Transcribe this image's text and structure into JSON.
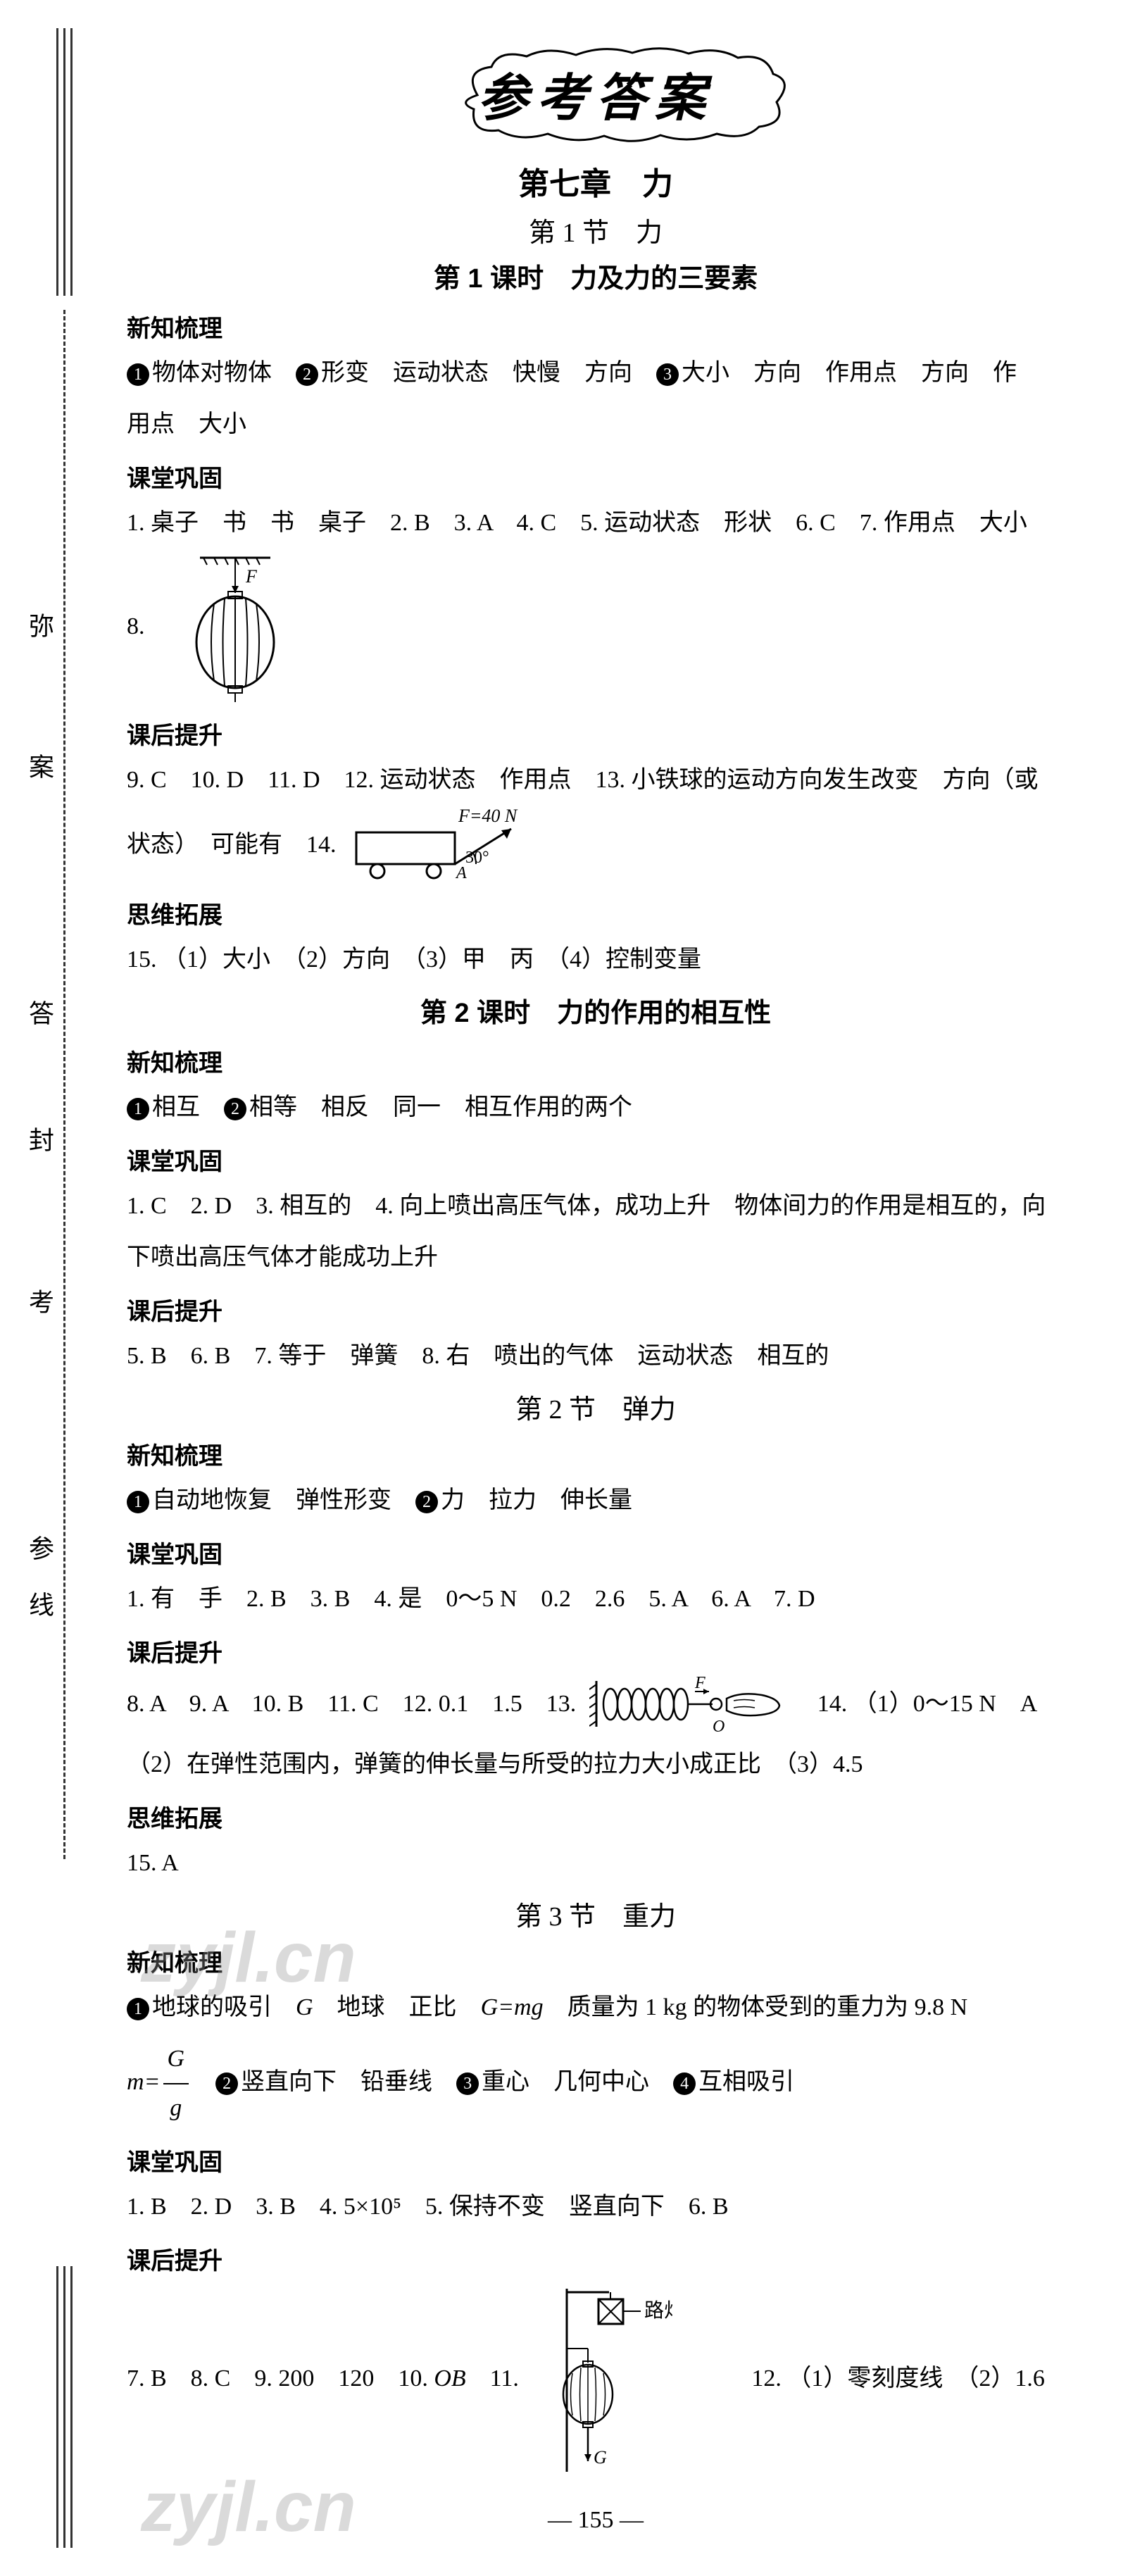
{
  "page": {
    "title": "参考答案",
    "chapter": "第七章　力",
    "page_number": "155",
    "spine_chars": [
      "弥",
      "案",
      "答",
      "封",
      "考",
      "参",
      "线"
    ]
  },
  "watermark": "zyjl.cn",
  "sections": [
    {
      "section_title": "第 1 节　力",
      "lessons": [
        {
          "lesson_title": "第 1 课时　力及力的三要素",
          "blocks": [
            {
              "heading": "新知梳理",
              "lines": [
                [
                  {
                    "type": "num",
                    "v": "1"
                  },
                  {
                    "type": "text",
                    "v": "物体对物体　"
                  },
                  {
                    "type": "num",
                    "v": "2"
                  },
                  {
                    "type": "text",
                    "v": "形变　运动状态　快慢　方向　"
                  },
                  {
                    "type": "num",
                    "v": "3"
                  },
                  {
                    "type": "text",
                    "v": "大小　方向　作用点　方向　作"
                  }
                ],
                [
                  {
                    "type": "text",
                    "v": "用点　大小"
                  }
                ]
              ]
            },
            {
              "heading": "课堂巩固",
              "lines": [
                [
                  {
                    "type": "text",
                    "v": "1. 桌子　书　书　桌子　2. B　3. A　4. C　5. 运动状态　形状　6. C　7. 作用点　大小"
                  }
                ],
                [
                  {
                    "type": "text",
                    "v": "8. "
                  },
                  {
                    "type": "svg",
                    "name": "lantern-figure",
                    "svg": "lantern"
                  }
                ]
              ]
            },
            {
              "heading": "课后提升",
              "lines": [
                [
                  {
                    "type": "text",
                    "v": "9. C　10. D　11. D　12. 运动状态　作用点　13. 小铁球的运动方向发生改变　方向（或"
                  }
                ],
                [
                  {
                    "type": "text",
                    "v": "状态）　可能有　14. "
                  },
                  {
                    "type": "svg",
                    "name": "cart-force-figure",
                    "svg": "cart"
                  }
                ]
              ]
            },
            {
              "heading": "思维拓展",
              "lines": [
                [
                  {
                    "type": "text",
                    "v": "15. （1）大小　（2）方向　（3）甲　丙　（4）控制变量"
                  }
                ]
              ]
            }
          ]
        },
        {
          "lesson_title": "第 2 课时　力的作用的相互性",
          "blocks": [
            {
              "heading": "新知梳理",
              "lines": [
                [
                  {
                    "type": "num",
                    "v": "1"
                  },
                  {
                    "type": "text",
                    "v": "相互　"
                  },
                  {
                    "type": "num",
                    "v": "2"
                  },
                  {
                    "type": "text",
                    "v": "相等　相反　同一　相互作用的两个"
                  }
                ]
              ]
            },
            {
              "heading": "课堂巩固",
              "lines": [
                [
                  {
                    "type": "text",
                    "v": "1. C　2. D　3. 相互的　4. 向上喷出高压气体，成功上升　物体间力的作用是相互的，向"
                  }
                ],
                [
                  {
                    "type": "text",
                    "v": "下喷出高压气体才能成功上升"
                  }
                ]
              ]
            },
            {
              "heading": "课后提升",
              "lines": [
                [
                  {
                    "type": "text",
                    "v": "5. B　6. B　7. 等于　弹簧　8. 右　喷出的气体　运动状态　相互的"
                  }
                ]
              ]
            }
          ]
        }
      ]
    },
    {
      "section_title": "第 2 节　弹力",
      "lessons": [
        {
          "lesson_title": "",
          "blocks": [
            {
              "heading": "新知梳理",
              "lines": [
                [
                  {
                    "type": "num",
                    "v": "1"
                  },
                  {
                    "type": "text",
                    "v": "自动地恢复　弹性形变　"
                  },
                  {
                    "type": "num",
                    "v": "2"
                  },
                  {
                    "type": "text",
                    "v": "力　拉力　伸长量"
                  }
                ]
              ]
            },
            {
              "heading": "课堂巩固",
              "lines": [
                [
                  {
                    "type": "text",
                    "v": "1. 有　手　2. B　3. B　4. 是　0～5 N　0.2　2.6　5. A　6. A　7. D"
                  }
                ]
              ]
            },
            {
              "heading": "课后提升",
              "lines": [
                [
                  {
                    "type": "text",
                    "v": "8. A　9. A　10. B　11. C　12. 0.1　1.5　13. "
                  },
                  {
                    "type": "svg",
                    "name": "spring-hand-figure",
                    "svg": "spring"
                  },
                  {
                    "type": "text",
                    "v": "　14. （1）0～15 N　A"
                  }
                ],
                [
                  {
                    "type": "text",
                    "v": "（2）在弹性范围内，弹簧的伸长量与所受的拉力大小成正比　（3）4.5"
                  }
                ]
              ]
            },
            {
              "heading": "思维拓展",
              "lines": [
                [
                  {
                    "type": "text",
                    "v": "15. A"
                  }
                ]
              ]
            }
          ]
        }
      ]
    },
    {
      "section_title": "第 3 节　重力",
      "lessons": [
        {
          "lesson_title": "",
          "blocks": [
            {
              "heading": "新知梳理",
              "lines": [
                [
                  {
                    "type": "num",
                    "v": "1"
                  },
                  {
                    "type": "text",
                    "v": "地球的吸引　"
                  },
                  {
                    "type": "formula",
                    "v": "G"
                  },
                  {
                    "type": "text",
                    "v": "　地球　正比　"
                  },
                  {
                    "type": "formula",
                    "v": "G=mg"
                  },
                  {
                    "type": "text",
                    "v": "　质量为 1 kg 的物体受到的重力为 9.8 N"
                  }
                ],
                [
                  {
                    "type": "frac",
                    "eq": "m=",
                    "num": "G",
                    "den": "g"
                  },
                  {
                    "type": "text",
                    "v": "　"
                  },
                  {
                    "type": "num",
                    "v": "2"
                  },
                  {
                    "type": "text",
                    "v": "竖直向下　铅垂线　"
                  },
                  {
                    "type": "num",
                    "v": "3"
                  },
                  {
                    "type": "text",
                    "v": "重心　几何中心　"
                  },
                  {
                    "type": "num",
                    "v": "4"
                  },
                  {
                    "type": "text",
                    "v": "互相吸引"
                  }
                ]
              ]
            },
            {
              "heading": "课堂巩固",
              "lines": [
                [
                  {
                    "type": "text",
                    "v": "1. B　2. D　3. B　4. 5×10⁵　5. 保持不变　竖直向下　6. B"
                  }
                ]
              ]
            },
            {
              "heading": "课后提升",
              "lines": [
                [
                  {
                    "type": "text",
                    "v": "7. B　8. C　9. 200　120　10. "
                  },
                  {
                    "type": "formula",
                    "v": "OB"
                  },
                  {
                    "type": "text",
                    "v": "　11. "
                  },
                  {
                    "type": "svg",
                    "name": "streetlamp-figure",
                    "svg": "lamp"
                  },
                  {
                    "type": "text",
                    "v": "　　　12. （1）零刻度线　（2）1.6"
                  }
                ]
              ]
            }
          ]
        }
      ]
    }
  ],
  "svg_labels": {
    "lantern_F": "F",
    "cart_F": "F=40 N",
    "cart_angle": "30°",
    "cart_A": "A",
    "spring_F": "F",
    "spring_O": "O",
    "lamp_label": "路灯",
    "lamp_G": "G"
  },
  "colors": {
    "text": "#000000",
    "bg": "#ffffff",
    "watermark": "rgba(150,150,150,0.35)"
  }
}
